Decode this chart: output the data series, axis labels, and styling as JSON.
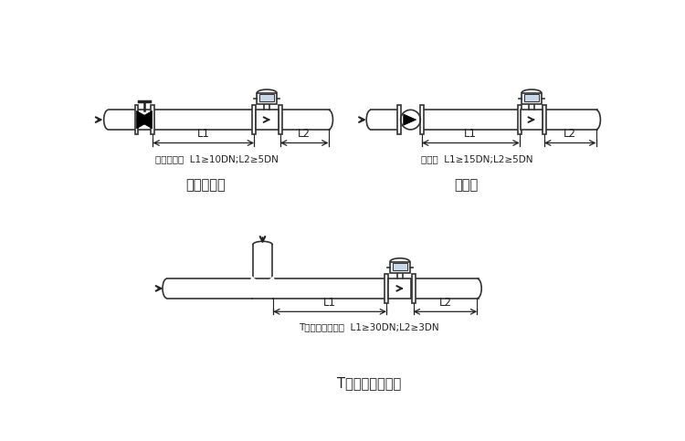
{
  "bg_color": "#ffffff",
  "line_color": "#333333",
  "dark_color": "#222222",
  "gray_color": "#888888",
  "light_gray": "#cccccc",
  "text_color": "#333333",
  "label1": "截止阀下游  L1≥10DN;L2≥5DN",
  "label2": "泉下游  L1≥15DN;L2≥5DN",
  "label3": "T形三通、混合流  L1≥30DN;L2≥3DN",
  "title1": "截止阀下游",
  "title2": "泉下游",
  "title3": "T形三通、混合流",
  "L1": "L1",
  "L2": "L2"
}
